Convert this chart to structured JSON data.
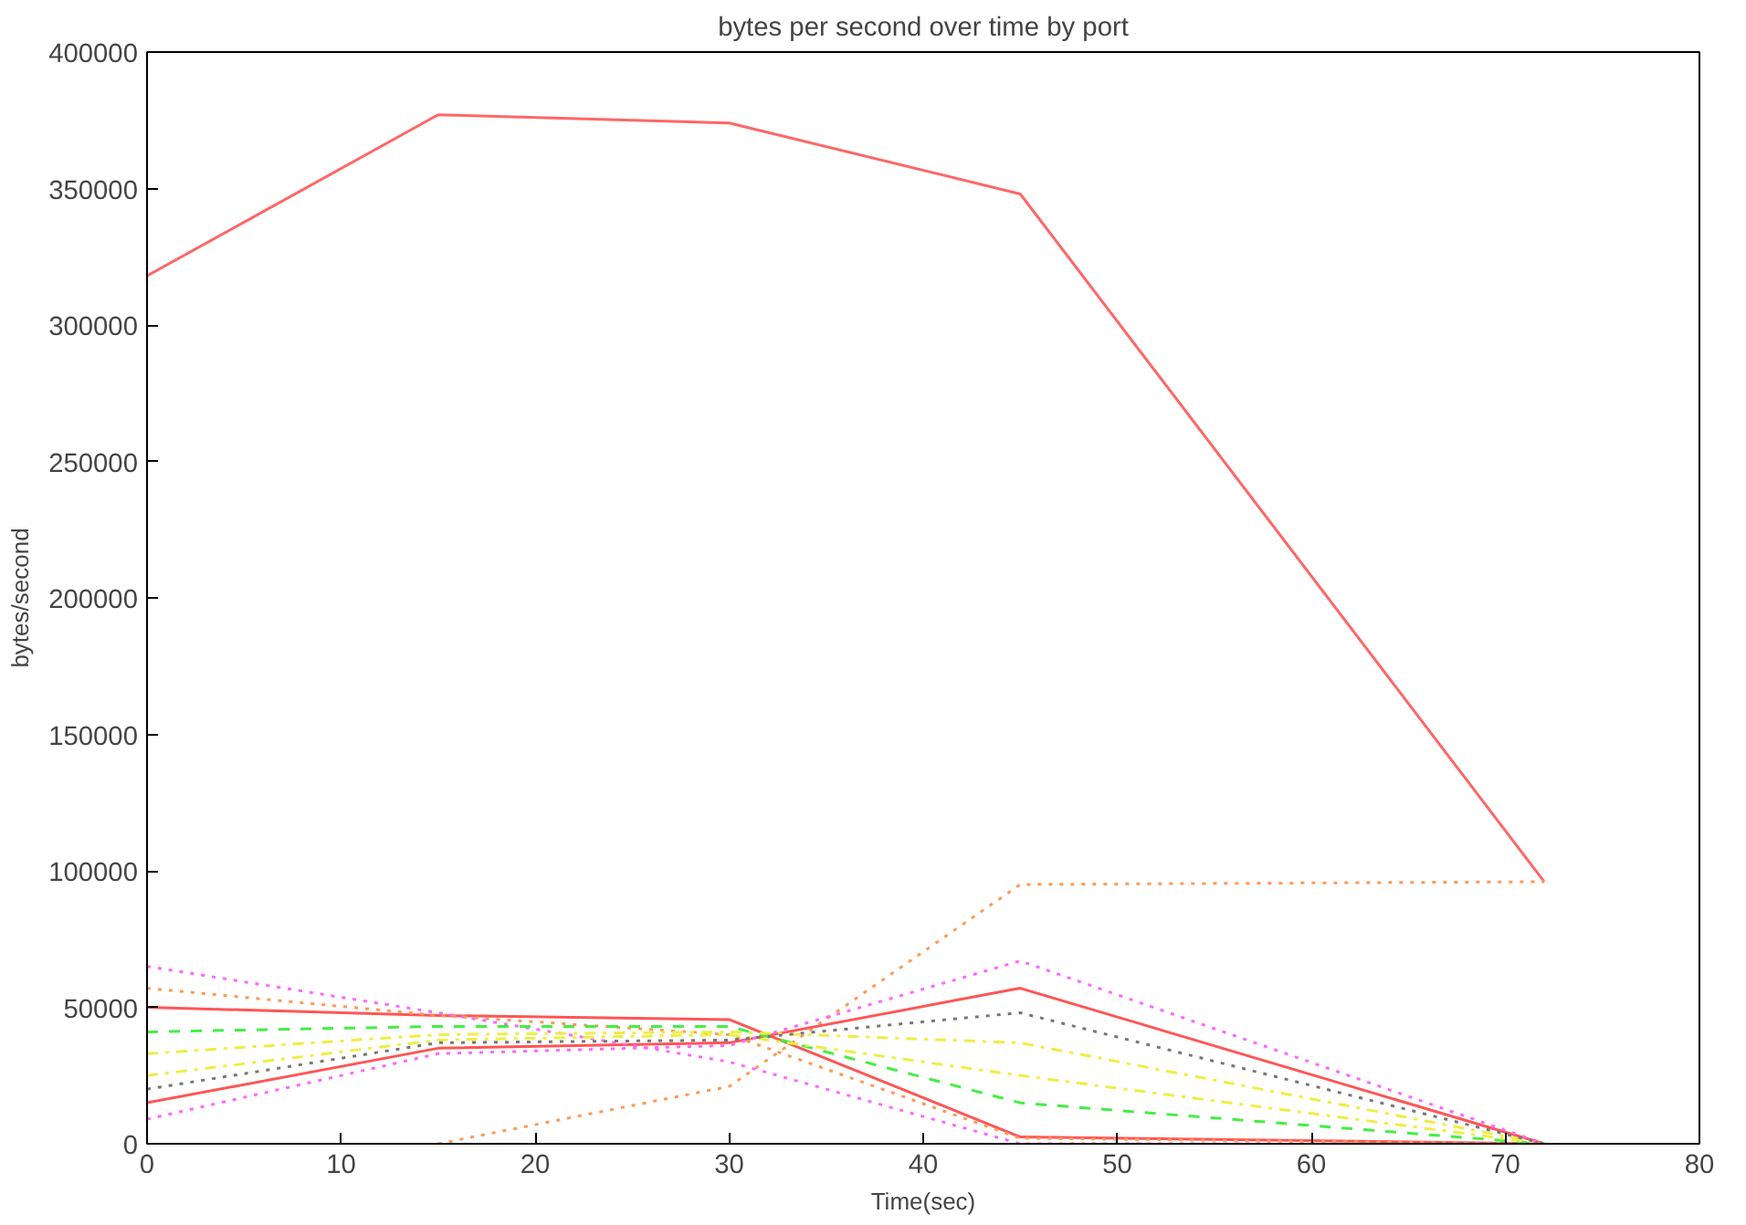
{
  "chart_data": {
    "type": "line",
    "title": "bytes per second over time by port",
    "xlabel": "Time(sec)",
    "ylabel": "bytes/second",
    "x": [
      0,
      15,
      30,
      45,
      72
    ],
    "xlim": [
      0,
      80
    ],
    "xticks": [
      0,
      10,
      20,
      30,
      40,
      50,
      60,
      70,
      80
    ],
    "ylim": [
      0,
      400000
    ],
    "yticks": [
      0,
      50000,
      100000,
      150000,
      200000,
      250000,
      300000,
      350000,
      400000
    ],
    "grid": false,
    "series": [
      {
        "color": "#ff6666",
        "line_style": "solid",
        "values": [
          318000,
          377000,
          374000,
          348000,
          96000
        ]
      },
      {
        "color": "#ff9955",
        "line_style": "dotted",
        "values": [
          null,
          0,
          21000,
          95000,
          96000
        ]
      },
      {
        "color": "#ff5555",
        "line_style": "solid",
        "values": [
          50000,
          47000,
          45500,
          2500,
          0
        ]
      },
      {
        "color": "#ff5555",
        "line_style": "solid",
        "values": [
          15000,
          35000,
          37000,
          57000,
          0
        ]
      },
      {
        "color": "#ff66ff",
        "line_style": "dotted",
        "values": [
          65000,
          48000,
          30000,
          0,
          0
        ]
      },
      {
        "color": "#ff66ff",
        "line_style": "dotted",
        "values": [
          9000,
          33000,
          36000,
          67000,
          0
        ]
      },
      {
        "color": "#ff9955",
        "line_style": "dotted",
        "values": [
          57000,
          47000,
          40000,
          2000,
          0
        ]
      },
      {
        "color": "#44ee44",
        "line_style": "dashed",
        "values": [
          41000,
          43000,
          43000,
          15000,
          0
        ]
      },
      {
        "color": "#eeee44",
        "line_style": "dashdot",
        "values": [
          33000,
          40000,
          41000,
          37000,
          0
        ]
      },
      {
        "color": "#eeee44",
        "line_style": "dashdot",
        "values": [
          25000,
          38000,
          40000,
          25000,
          0
        ]
      },
      {
        "color": "#777777",
        "line_style": "dotted",
        "values": [
          20000,
          37000,
          38000,
          48000,
          0
        ]
      }
    ]
  }
}
